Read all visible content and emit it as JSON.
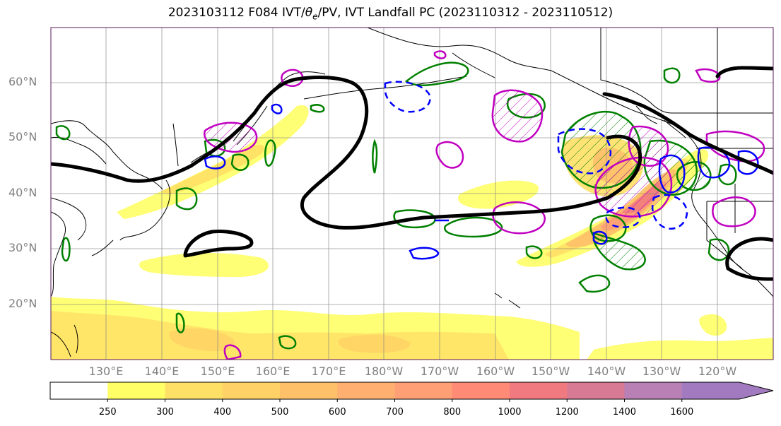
{
  "title_prefix": "2023103112 F084 IVT/",
  "title_theta": "θ",
  "title_theta_sub": "e",
  "title_suffix": "/PV, IVT Landfall PC (2023110312 - 2023110512)",
  "lat_labels": [
    "60°N",
    "50°N",
    "40°N",
    "30°N",
    "20°N"
  ],
  "lon_labels": [
    "130°E",
    "140°E",
    "150°E",
    "160°E",
    "170°E",
    "180°W",
    "170°W",
    "160°W",
    "150°W",
    "140°W",
    "130°W",
    "120°W"
  ],
  "colorbar": {
    "levels": [
      250,
      300,
      400,
      500,
      600,
      700,
      800,
      1000,
      1200,
      1400,
      1600
    ],
    "tick_labels": [
      "250",
      "300",
      "400",
      "500",
      "600",
      "700",
      "800",
      "1000",
      "1200",
      "1400",
      "1600"
    ],
    "colors": [
      "#ffffff",
      "#ffff66",
      "#ffe066",
      "#ffd166",
      "#ffc06a",
      "#ffb070",
      "#ff9f75",
      "#ff8a75",
      "#f07a80",
      "#d97a95",
      "#b980b5",
      "#a27ac0"
    ],
    "extend": "max"
  },
  "contour_colors": {
    "height_contour": "#000000",
    "theta_e_contour": "#0000ff",
    "pv_contour": "#008000",
    "landfall_pc": "#c000c0",
    "map_frame": "#5a1a5a"
  }
}
